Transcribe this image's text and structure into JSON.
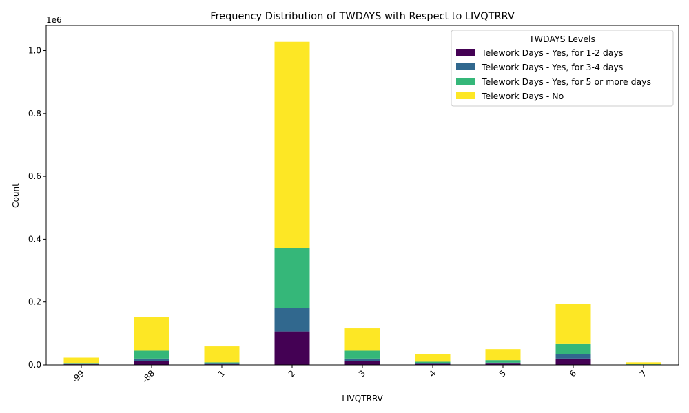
{
  "chart_data": {
    "type": "bar",
    "stacked": true,
    "title": "Frequency Distribution of TWDAYS with Respect to LIVQTRRV",
    "xlabel": "LIVQTRRV",
    "ylabel": "Count",
    "y_offset_label": "1e6",
    "categories": [
      "-99",
      "-88",
      "1",
      "2",
      "3",
      "4",
      "5",
      "6",
      "7"
    ],
    "ylim": [
      0,
      1080000
    ],
    "yticks": [
      0,
      200000,
      400000,
      600000,
      800000,
      1000000
    ],
    "ytick_labels": [
      "0.0",
      "0.2",
      "0.4",
      "0.6",
      "0.8",
      "1.0"
    ],
    "grid": false,
    "legend": {
      "title": "TWDAYS Levels",
      "placement": "top-right"
    },
    "series": [
      {
        "name": "Telework Days - Yes, for 1-2 days",
        "color": "#440154",
        "values": [
          2000,
          12000,
          2000,
          106000,
          12000,
          3000,
          4000,
          20000,
          500
        ]
      },
      {
        "name": "Telework Days - Yes, for 3-4 days",
        "color": "#31688e",
        "values": [
          1000,
          8000,
          2000,
          75000,
          8000,
          2000,
          3000,
          14000,
          500
        ]
      },
      {
        "name": "Telework Days - Yes, for 5 or more days",
        "color": "#35b779",
        "values": [
          1000,
          25000,
          4000,
          191000,
          25000,
          5000,
          8000,
          32000,
          1000
        ]
      },
      {
        "name": "Telework Days - No",
        "color": "#fde725",
        "values": [
          19000,
          108000,
          51000,
          656000,
          71000,
          24000,
          35000,
          127000,
          6000
        ]
      }
    ]
  }
}
